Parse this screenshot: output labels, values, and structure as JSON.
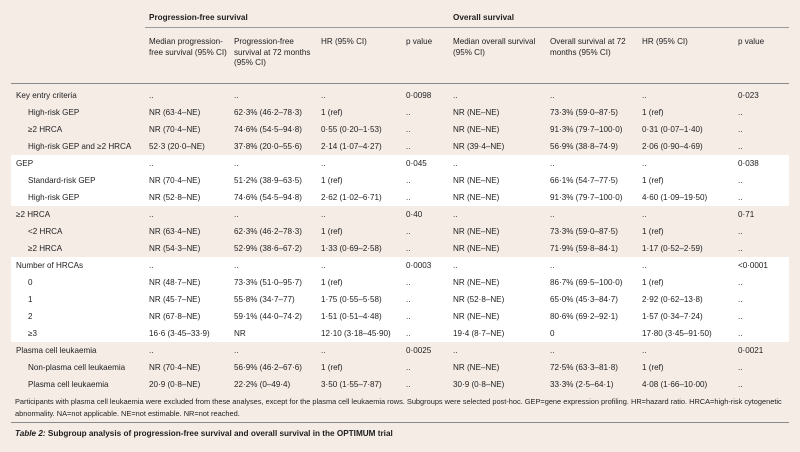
{
  "table": {
    "groups": {
      "pfs": "Progression-free survival",
      "os": "Overall survival"
    },
    "columns": [
      "Median progression-free survival (95% CI)",
      "Progression-free survival at 72 months (95% CI)",
      "HR (95% CI)",
      "p value",
      "Median overall survival (95% CI)",
      "Overall survival at 72 months (95% CI)",
      "HR (95% CI)",
      "p value"
    ],
    "rows": [
      {
        "label": "Key entry criteria",
        "cells": [
          "..",
          "..",
          "..",
          "0·0098",
          "..",
          "..",
          "..",
          "0·023"
        ],
        "type": "head",
        "white": false
      },
      {
        "label": "High-risk GEP",
        "cells": [
          "NR (63·4–NE)",
          "62·3% (46·2–78·3)",
          "1 (ref)",
          "..",
          "NR (NE–NE)",
          "73·3% (59·0–87·5)",
          "1 (ref)",
          ".."
        ],
        "type": "sub",
        "white": false
      },
      {
        "label": "≥2 HRCA",
        "cells": [
          "NR (70·4–NE)",
          "74·6% (54·5–94·8)",
          "0·55 (0·20–1·53)",
          "..",
          "NR (NE–NE)",
          "91·3% (79·7–100·0)",
          "0·31 (0·07–1·40)",
          ".."
        ],
        "type": "sub",
        "white": false
      },
      {
        "label": "High-risk GEP and ≥2 HRCA",
        "cells": [
          "52·3 (20·0–NE)",
          "37·8% (20·0–55·6)",
          "2·14 (1·07–4·27)",
          "..",
          "NR (39·4–NE)",
          "56·9% (38·8–74·9)",
          "2·06 (0·90–4·69)",
          ".."
        ],
        "type": "sub",
        "white": false
      },
      {
        "label": "GEP",
        "cells": [
          "..",
          "..",
          "..",
          "0·045",
          "..",
          "..",
          "..",
          "0·038"
        ],
        "type": "head",
        "white": true
      },
      {
        "label": "Standard-risk GEP",
        "cells": [
          "NR (70·4–NE)",
          "51·2% (38·9–63·5)",
          "1 (ref)",
          "..",
          "NR (NE–NE)",
          "66·1% (54·7–77·5)",
          "1 (ref)",
          ".."
        ],
        "type": "sub",
        "white": true
      },
      {
        "label": "High-risk GEP",
        "cells": [
          "NR (52·8–NE)",
          "74·6% (54·5–94·8)",
          "2·62 (1·02–6·71)",
          "..",
          "NR (NE–NE)",
          "91·3% (79·7–100·0)",
          "4·60 (1·09–19·50)",
          ".."
        ],
        "type": "sub",
        "white": true
      },
      {
        "label": "≥2 HRCA",
        "cells": [
          "..",
          "..",
          "..",
          "0·40",
          "..",
          "..",
          "..",
          "0·71"
        ],
        "type": "head",
        "white": false
      },
      {
        "label": "<2 HRCA",
        "cells": [
          "NR (63·4–NE)",
          "62·3% (46·2–78·3)",
          "1 (ref)",
          "..",
          "NR (NE–NE)",
          "73·3% (59·0–87·5)",
          "1 (ref)",
          ".."
        ],
        "type": "sub",
        "white": false
      },
      {
        "label": "≥2 HRCA",
        "cells": [
          "NR (54·3–NE)",
          "52·9% (38·6–67·2)",
          "1·33 (0·69–2·58)",
          "..",
          "NR (NE–NE)",
          "71·9% (59·8–84·1)",
          "1·17 (0·52–2·59)",
          ".."
        ],
        "type": "sub",
        "white": false
      },
      {
        "label": "Number of HRCAs",
        "cells": [
          "..",
          "..",
          "..",
          "0·0003",
          "..",
          "..",
          "..",
          "<0·0001"
        ],
        "type": "head",
        "white": true
      },
      {
        "label": "0",
        "cells": [
          "NR (48·7–NE)",
          "73·3% (51·0–95·7)",
          "1 (ref)",
          "..",
          "NR (NE–NE)",
          "86·7% (69·5–100·0)",
          "1 (ref)",
          ".."
        ],
        "type": "sub",
        "white": true
      },
      {
        "label": "1",
        "cells": [
          "NR (45·7–NE)",
          "55·8% (34·7–77)",
          "1·75 (0·55–5·58)",
          "..",
          "NR (52·8–NE)",
          "65·0% (45·3–84·7)",
          "2·92 (0·62–13·8)",
          ".."
        ],
        "type": "sub",
        "white": true
      },
      {
        "label": "2",
        "cells": [
          "NR (67·8–NE)",
          "59·1% (44·0–74·2)",
          "1·51 (0·51–4·48)",
          "..",
          "NR (NE–NE)",
          "80·6% (69·2–92·1)",
          "1·57 (0·34–7·24)",
          ".."
        ],
        "type": "sub",
        "white": true
      },
      {
        "label": "≥3",
        "cells": [
          "16·6 (3·45–33·9)",
          "NR",
          "12·10 (3·18–45·90)",
          "..",
          "19·4 (8·7–NE)",
          "0",
          "17·80 (3·45–91·50)",
          ".."
        ],
        "type": "sub",
        "white": true
      },
      {
        "label": "Plasma cell leukaemia",
        "cells": [
          "..",
          "..",
          "..",
          "0·0025",
          "..",
          "..",
          "..",
          "0·0021"
        ],
        "type": "head",
        "white": false
      },
      {
        "label": "Non-plasma cell leukaemia",
        "cells": [
          "NR (70·4–NE)",
          "56·9% (46·2–67·6)",
          "1 (ref)",
          "..",
          "NR (NE–NE)",
          "72·5% (63·3–81·8)",
          "1 (ref)",
          ".."
        ],
        "type": "sub",
        "white": false
      },
      {
        "label": "Plasma cell leukaemia",
        "cells": [
          "20·9 (0·8–NE)",
          "22·2% (0–49·4)",
          "3·50 (1·55–7·87)",
          "..",
          "30·9 (0·8–NE)",
          "33·3% (2·5–64·1)",
          "4·08 (1·66–10·00)",
          ".."
        ],
        "type": "sub",
        "white": false
      }
    ]
  },
  "footnote": "Participants with plasma cell leukaemia were excluded from these analyses, except for the plasma cell leukaemia rows. Subgroups were selected post-hoc. GEP=gene expression profiling. HR=hazard ratio. HRCA=high-risk cytogenetic abnormality. NA=not applicable. NE=not estimable. NR=not reached.",
  "caption": {
    "number": "Table 2:",
    "text": " Subgroup analysis of progression-free survival and overall survival in the OPTIMUM trial"
  }
}
